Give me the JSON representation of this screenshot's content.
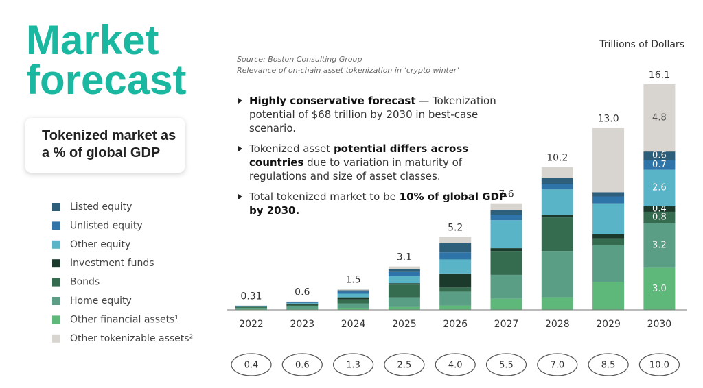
{
  "title": "Market forecast",
  "subtitle": "Tokenized market as a % of global GDP",
  "source": "Source: Boston Consulting Group",
  "source_note": "Relevance of on-chain asset tokenization in ‘crypto winter’",
  "bullets": [
    [
      {
        "text": "Highly conservative forecast",
        "bold": true
      },
      {
        "text": " — Tokenization potential of $68 trillion by 2030 in best-case scenario.",
        "bold": false
      }
    ],
    [
      {
        "text": "Tokenized asset ",
        "bold": false
      },
      {
        "text": "potential differs across countries",
        "bold": true
      },
      {
        "text": " due to variation in maturity of regulations and size of asset classes.",
        "bold": false
      }
    ],
    [
      {
        "text": "Total tokenized market to be ",
        "bold": false
      },
      {
        "text": "10% of global GDP by 2030.",
        "bold": true
      }
    ]
  ],
  "chart_data": {
    "type": "stacked_bar",
    "unit_label": "Trillions of Dollars",
    "categories": [
      "2022",
      "2023",
      "2024",
      "2025",
      "2026",
      "2027",
      "2028",
      "2029",
      "2030"
    ],
    "series": [
      {
        "name": "Other financial assets¹",
        "color": "#5db87a",
        "values": [
          0.05,
          0.05,
          0.1,
          0.2,
          0.3,
          0.8,
          0.9,
          2.0,
          3.0
        ],
        "value_labels": [
          null,
          null,
          null,
          null,
          null,
          null,
          null,
          null,
          "3.0"
        ]
      },
      {
        "name": "Home equity",
        "color": "#5a9e85",
        "values": [
          0.1,
          0.2,
          0.35,
          0.7,
          1.0,
          1.7,
          3.3,
          2.6,
          3.2
        ],
        "value_labels": [
          null,
          null,
          null,
          null,
          null,
          null,
          null,
          null,
          "3.2"
        ]
      },
      {
        "name": "Bonds",
        "color": "#356b4f",
        "values": [
          0.05,
          0.1,
          0.3,
          0.9,
          0.3,
          1.7,
          2.4,
          0.5,
          0.8
        ],
        "value_labels": [
          null,
          null,
          null,
          null,
          null,
          null,
          null,
          null,
          "0.8"
        ]
      },
      {
        "name": "Investment funds",
        "color": "#1c3a2c",
        "values": [
          0.02,
          0.05,
          0.15,
          0.1,
          1.0,
          0.2,
          0.2,
          0.3,
          0.4
        ],
        "value_labels": [
          null,
          null,
          null,
          null,
          null,
          null,
          null,
          null,
          "0.4"
        ]
      },
      {
        "name": "Other equity",
        "color": "#5ab4c8",
        "values": [
          0.04,
          0.08,
          0.25,
          0.5,
          1.0,
          2.0,
          1.8,
          2.2,
          2.6
        ],
        "value_labels": [
          null,
          null,
          null,
          null,
          null,
          null,
          null,
          null,
          "2.6"
        ]
      },
      {
        "name": "Unlisted equity",
        "color": "#2f74a8",
        "values": [
          0.02,
          0.05,
          0.15,
          0.3,
          0.5,
          0.4,
          0.4,
          0.5,
          0.7
        ],
        "value_labels": [
          null,
          null,
          null,
          null,
          null,
          null,
          null,
          null,
          "0.7"
        ]
      },
      {
        "name": "Listed equity",
        "color": "#2e5f7a",
        "values": [
          0.02,
          0.04,
          0.1,
          0.2,
          0.7,
          0.3,
          0.4,
          0.3,
          0.6
        ],
        "value_labels": [
          null,
          null,
          null,
          null,
          null,
          null,
          null,
          null,
          "0.6"
        ]
      },
      {
        "name": "Other tokenizable assets²",
        "color": "#d8d5d0",
        "values": [
          0.01,
          0.03,
          0.1,
          0.2,
          0.4,
          0.5,
          0.8,
          4.6,
          4.8
        ],
        "value_labels": [
          null,
          null,
          null,
          null,
          null,
          null,
          null,
          null,
          "4.8"
        ]
      }
    ],
    "totals": [
      0.31,
      0.6,
      1.5,
      3.1,
      5.2,
      7.6,
      10.2,
      13,
      16.1
    ],
    "total_labels": [
      "0.31",
      "0.6",
      "1.5",
      "3.1",
      "5.2",
      "7.6",
      "10.2",
      "13.0",
      "16.1"
    ],
    "gdp_share": [
      "0.4",
      "0.6",
      "1.3",
      "2.5",
      "4.0",
      "5.5",
      "7.0",
      "8.5",
      "10.0"
    ]
  }
}
